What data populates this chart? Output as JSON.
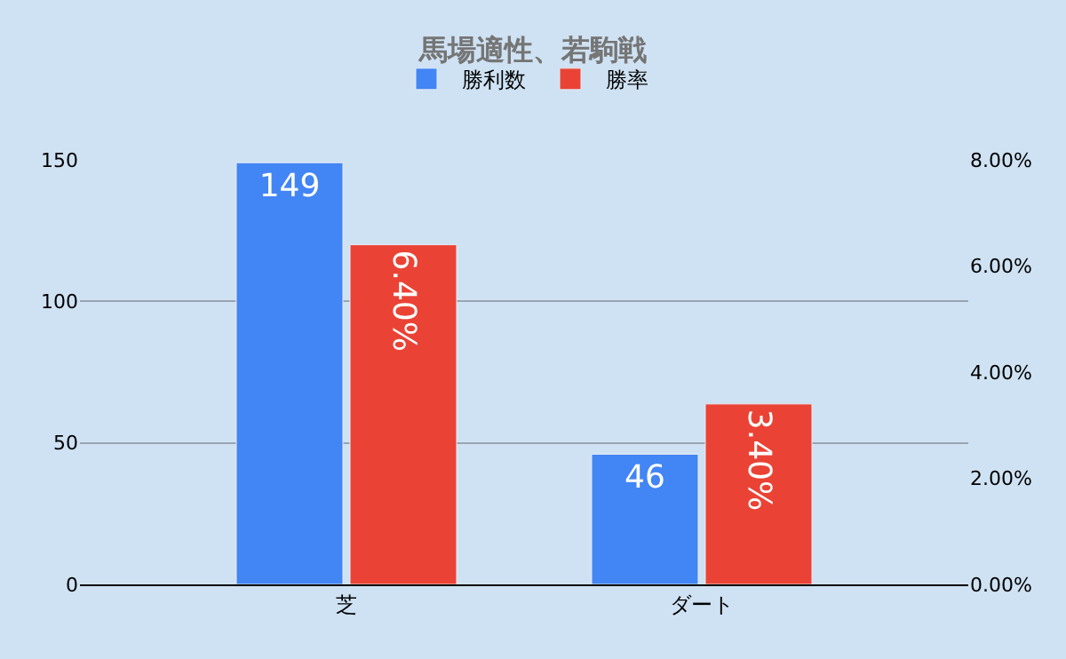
{
  "chart_data": {
    "type": "bar",
    "title": "馬場適性、若駒戦",
    "categories": [
      "芝",
      "ダート"
    ],
    "series": [
      {
        "name": "勝利数",
        "color": "#4285f4",
        "values": [
          149,
          46
        ],
        "value_labels": [
          "149",
          "46"
        ]
      },
      {
        "name": "勝率",
        "color": "#ea4335",
        "values": [
          6.4,
          3.4
        ],
        "axis": "y2",
        "value_labels": [
          "6.40%",
          "3.40%"
        ]
      }
    ],
    "ylim": [
      0,
      150
    ],
    "yticks": [
      0,
      50,
      100,
      150
    ],
    "y2lim": [
      0,
      8
    ],
    "y2ticks": [
      {
        "value": 0,
        "label": "0.00%"
      },
      {
        "value": 2,
        "label": "2.00%"
      },
      {
        "value": 4,
        "label": "4.00%"
      },
      {
        "value": 6,
        "label": "6.00%"
      },
      {
        "value": 8,
        "label": "8.00%"
      }
    ],
    "grid": "y",
    "legend": "top"
  }
}
